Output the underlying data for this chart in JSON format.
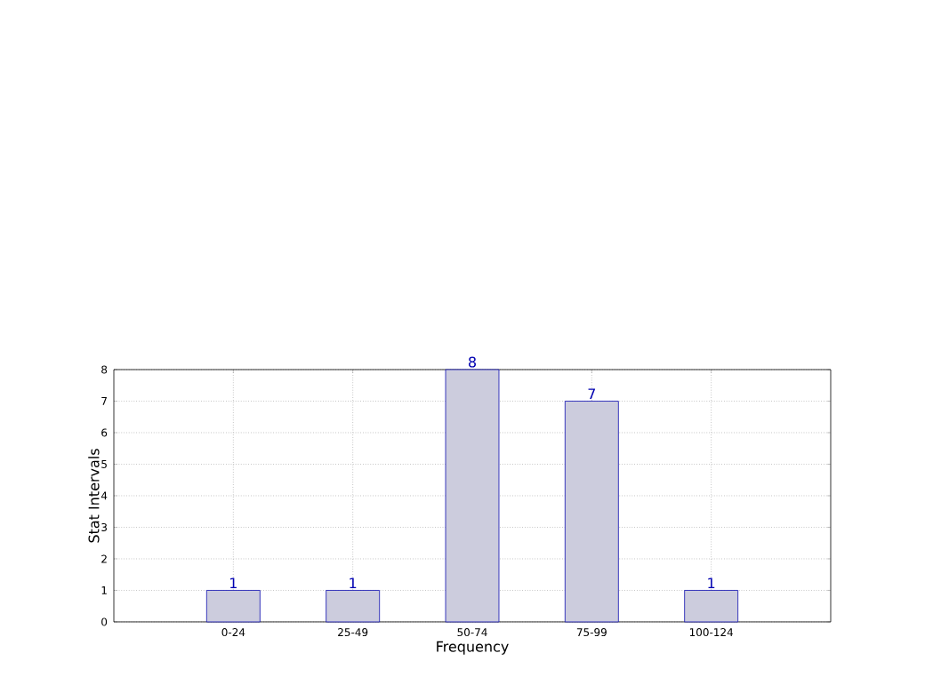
{
  "chart_data": {
    "type": "bar",
    "xlabel": "Frequency",
    "ylabel": "Stat Intervals",
    "categories": [
      "0-24",
      "25-49",
      "50-74",
      "75-99",
      "100-124"
    ],
    "values": [
      1,
      1,
      8,
      7,
      1
    ],
    "color": "#ccccdd",
    "ylim": [
      0,
      8
    ],
    "yticks": [
      0,
      1,
      2,
      3,
      4,
      5,
      6,
      7,
      8
    ],
    "grid": true,
    "data_labels": true
  }
}
